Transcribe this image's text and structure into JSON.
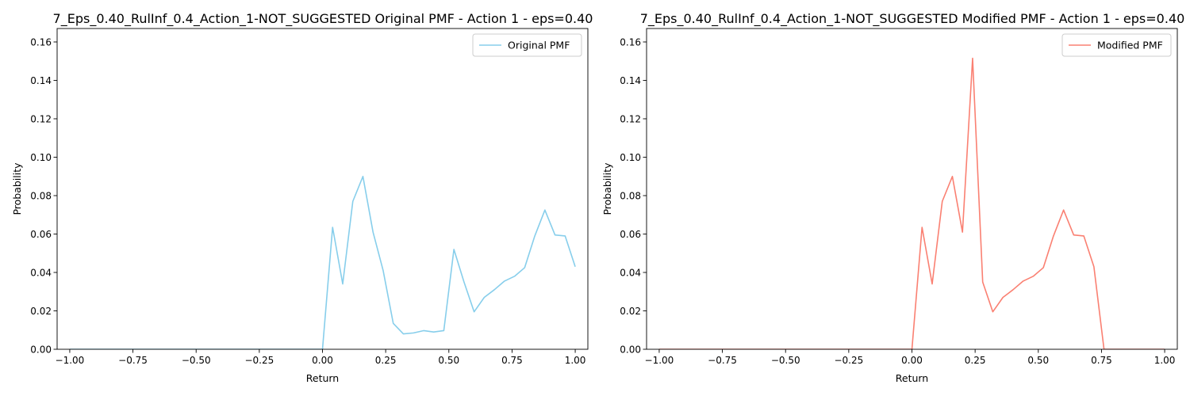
{
  "chart_data": [
    {
      "type": "line",
      "title": "7_Eps_0.40_RulInf_0.4_Action_1-NOT_SUGGESTED Original PMF - Action 1 - eps=0.40",
      "xlabel": "Return",
      "ylabel": "Probability",
      "xlim": [
        -1.05,
        1.05
      ],
      "ylim": [
        0,
        0.167
      ],
      "xticks": [
        "−1.00",
        "−0.75",
        "−0.50",
        "−0.25",
        "0.00",
        "0.25",
        "0.50",
        "0.75",
        "1.00"
      ],
      "xtick_values": [
        -1.0,
        -0.75,
        -0.5,
        -0.25,
        0.0,
        0.25,
        0.5,
        0.75,
        1.0
      ],
      "yticks": [
        "0.00",
        "0.02",
        "0.04",
        "0.06",
        "0.08",
        "0.10",
        "0.12",
        "0.14",
        "0.16"
      ],
      "ytick_values": [
        0.0,
        0.02,
        0.04,
        0.06,
        0.08,
        0.1,
        0.12,
        0.14,
        0.16
      ],
      "grid": false,
      "legend_position": "top-right",
      "color": "#87ceeb",
      "series": [
        {
          "name": "Original PMF",
          "x": [
            -1.0,
            -0.96,
            -0.92,
            -0.88,
            -0.84,
            -0.8,
            -0.76,
            -0.72,
            -0.68,
            -0.64,
            -0.6,
            -0.56,
            -0.52,
            -0.48,
            -0.44,
            -0.4,
            -0.36,
            -0.32,
            -0.28,
            -0.24,
            -0.2,
            -0.16,
            -0.12,
            -0.08,
            -0.04,
            0.0,
            0.04,
            0.08,
            0.12,
            0.16,
            0.2,
            0.24,
            0.28,
            0.32,
            0.36,
            0.4,
            0.44,
            0.48,
            0.52,
            0.56,
            0.6,
            0.64,
            0.68,
            0.72,
            0.76,
            0.8,
            0.84,
            0.88,
            0.92,
            0.96,
            1.0
          ],
          "y": [
            0,
            0,
            0,
            0,
            0,
            0,
            0,
            0,
            0,
            0,
            0,
            0,
            0,
            0,
            0,
            0,
            0,
            0,
            0,
            0,
            0,
            0,
            0,
            0,
            0,
            0,
            0.0635,
            0.034,
            0.077,
            0.09,
            0.061,
            0.041,
            0.0135,
            0.008,
            0.0085,
            0.0097,
            0.009,
            0.0097,
            0.052,
            0.035,
            0.0195,
            0.027,
            0.031,
            0.0355,
            0.038,
            0.0425,
            0.059,
            0.0725,
            0.0595,
            0.059,
            0.043
          ]
        }
      ]
    },
    {
      "type": "line",
      "title": "7_Eps_0.40_RulInf_0.4_Action_1-NOT_SUGGESTED Modified PMF - Action 1 - eps=0.40",
      "xlabel": "Return",
      "ylabel": "Probability",
      "xlim": [
        -1.05,
        1.05
      ],
      "ylim": [
        0,
        0.167
      ],
      "xticks": [
        "−1.00",
        "−0.75",
        "−0.50",
        "−0.25",
        "0.00",
        "0.25",
        "0.50",
        "0.75",
        "1.00"
      ],
      "xtick_values": [
        -1.0,
        -0.75,
        -0.5,
        -0.25,
        0.0,
        0.25,
        0.5,
        0.75,
        1.0
      ],
      "yticks": [
        "0.00",
        "0.02",
        "0.04",
        "0.06",
        "0.08",
        "0.10",
        "0.12",
        "0.14",
        "0.16"
      ],
      "ytick_values": [
        0.0,
        0.02,
        0.04,
        0.06,
        0.08,
        0.1,
        0.12,
        0.14,
        0.16
      ],
      "grid": false,
      "legend_position": "top-right",
      "color": "#fa8072",
      "series": [
        {
          "name": "Modified PMF",
          "x": [
            -1.0,
            -0.96,
            -0.92,
            -0.88,
            -0.84,
            -0.8,
            -0.76,
            -0.72,
            -0.68,
            -0.64,
            -0.6,
            -0.56,
            -0.52,
            -0.48,
            -0.44,
            -0.4,
            -0.36,
            -0.32,
            -0.28,
            -0.24,
            -0.2,
            -0.16,
            -0.12,
            -0.08,
            -0.04,
            0.0,
            0.04,
            0.08,
            0.12,
            0.16,
            0.2,
            0.24,
            0.28,
            0.32,
            0.36,
            0.4,
            0.44,
            0.48,
            0.52,
            0.56,
            0.6,
            0.64,
            0.68,
            0.72,
            0.76,
            0.8,
            0.84,
            0.88,
            0.92,
            0.96,
            1.0
          ],
          "y": [
            0,
            0,
            0,
            0,
            0,
            0,
            0,
            0,
            0,
            0,
            0,
            0,
            0,
            0,
            0,
            0,
            0,
            0,
            0,
            0,
            0,
            0,
            0,
            0,
            0,
            0,
            0.0635,
            0.034,
            0.077,
            0.09,
            0.061,
            0.1515,
            0.035,
            0.0195,
            0.027,
            0.031,
            0.0355,
            0.038,
            0.0425,
            0.059,
            0.0725,
            0.0595,
            0.059,
            0.043,
            0,
            0,
            0,
            0,
            0,
            0,
            0
          ]
        }
      ]
    }
  ]
}
